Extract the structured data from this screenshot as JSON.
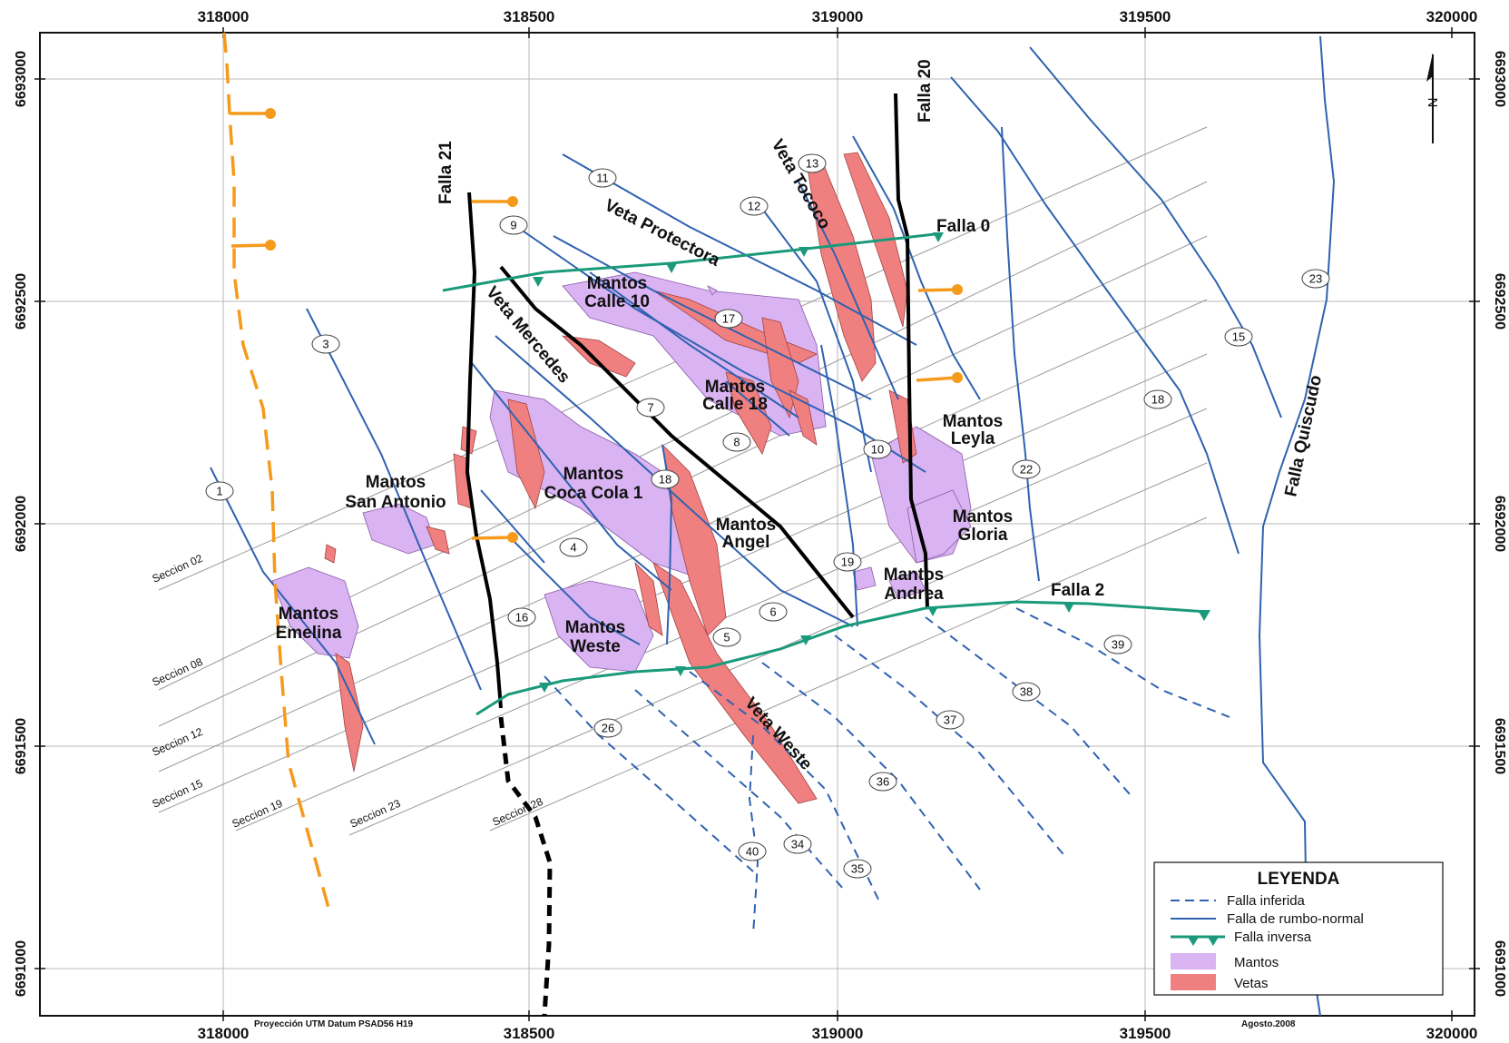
{
  "axes": {
    "x_ticks": [
      "318000",
      "318500",
      "319000",
      "319500",
      "320000"
    ],
    "y_ticks": [
      "6693000",
      "6692500",
      "6692000",
      "6691500",
      "6691000"
    ]
  },
  "colors": {
    "mantos": "#d9b3f2",
    "vetas": "#f08080",
    "falla_rumbo": "#2f62b0",
    "falla_inversa": "#1a9a7a",
    "falla_black": "#000000",
    "orange": "#f59a1b"
  },
  "faults": {
    "falla_21": "Falla 21",
    "falla_20": "Falla 20",
    "falla_0": "Falla 0",
    "falla_2": "Falla 2",
    "falla_quiscudo": "Falla Quiscudo"
  },
  "veins": {
    "veta_protectora": "Veta Protectora",
    "veta_mercedes": "Veta Mercedes",
    "veta_tococo": "Veta Tococo",
    "veta_weste": "Veta Weste"
  },
  "mantos": [
    [
      "Mantos",
      "Calle 10"
    ],
    [
      "Mantos",
      "Calle 18"
    ],
    [
      "Mantos",
      "Leyla"
    ],
    [
      "Mantos",
      "San Antonio"
    ],
    [
      "Mantos",
      "Coca Cola 1"
    ],
    [
      "Mantos",
      "Angel"
    ],
    [
      "Mantos",
      "Gloria"
    ],
    [
      "Mantos",
      "Andrea"
    ],
    [
      "Mantos",
      "Emelina"
    ],
    [
      "Mantos",
      "Weste"
    ]
  ],
  "sections": [
    "Seccion 02",
    "Seccion 08",
    "Seccion 12",
    "Seccion 15",
    "Seccion 19",
    "Seccion 23",
    "Seccion 28"
  ],
  "fault_numbers": [
    "11",
    "13",
    "12",
    "9",
    "17",
    "7",
    "8",
    "10",
    "18",
    "3",
    "1",
    "4",
    "16",
    "5",
    "6",
    "19",
    "22",
    "18",
    "15",
    "23",
    "26",
    "37",
    "38",
    "39",
    "36",
    "34",
    "35",
    "40"
  ],
  "legend": {
    "title": "LEYENDA",
    "items": [
      "Falla inferida",
      "Falla de rumbo-normal",
      "Falla inversa",
      "Mantos",
      "Vetas"
    ]
  },
  "footer": {
    "projection": "Proyección UTM Datum PSAD56 H19",
    "date": "Agosto.2008"
  },
  "north_symbol": "N"
}
